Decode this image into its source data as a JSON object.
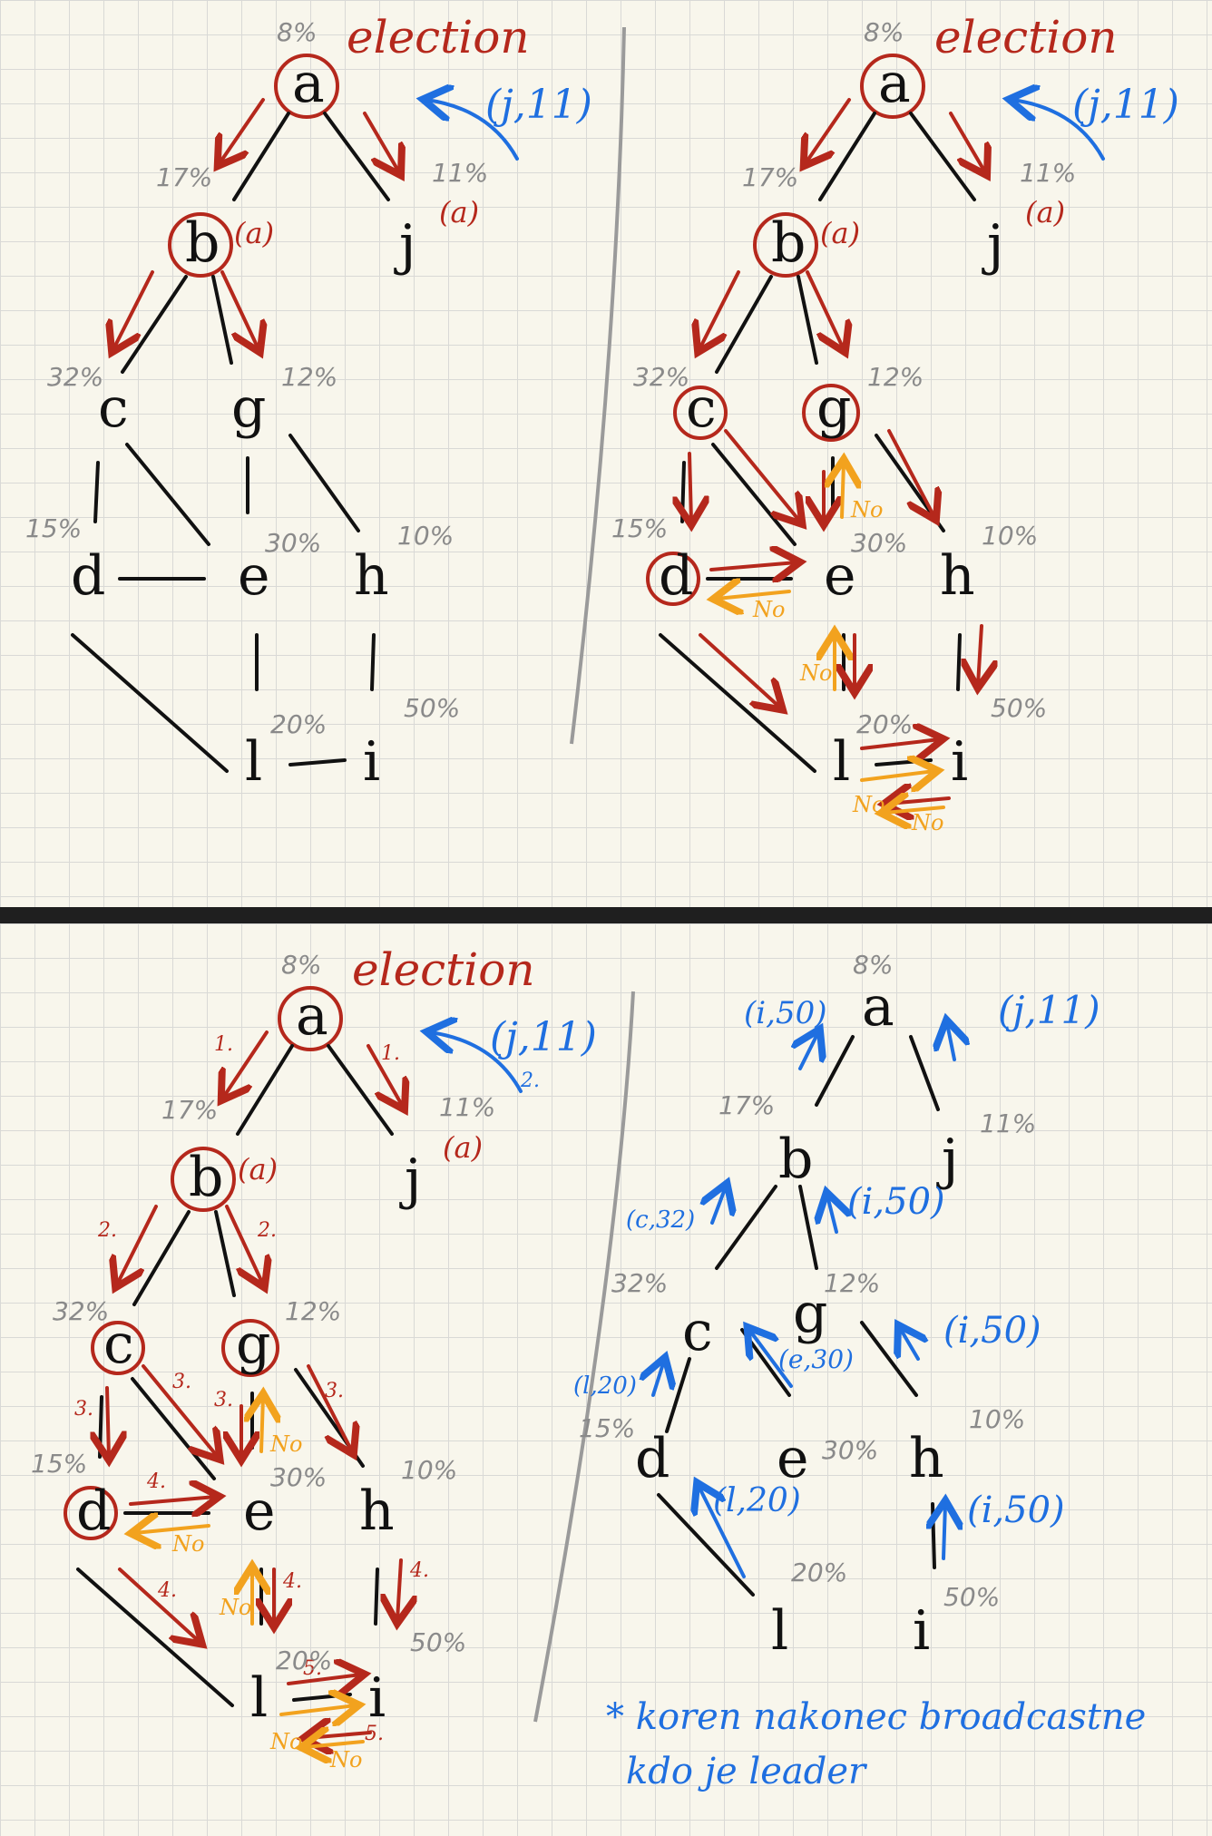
{
  "labels": {
    "election": "election",
    "msg_j": "(j,11)",
    "from_a": "(a)",
    "no": "No",
    "footnote_line1": "* koren nakonec broadcastne",
    "footnote_line2": "kdo je leader"
  },
  "nodes": {
    "a": "a",
    "b": "b",
    "c": "c",
    "d": "d",
    "e": "e",
    "g": "g",
    "h": "h",
    "i": "i",
    "j": "j",
    "l": "l"
  },
  "percents": {
    "a": "8%",
    "b": "17%",
    "j": "11%",
    "c": "32%",
    "g": "12%",
    "d": "15%",
    "e": "30%",
    "h": "10%",
    "l": "20%",
    "i": "50%"
  },
  "steps": {
    "s1": "1.",
    "s2": "2.",
    "s3": "3.",
    "s4": "4.",
    "s5": "5."
  },
  "replies": {
    "to_a_left": "(i,50)",
    "to_a_right": "(j,11)",
    "b_to_a": "(i,50)",
    "c_to_b": "(c,32)",
    "e_to_g": "(e,30)",
    "h_to_g": "(i,50)",
    "d_to_c": "(l,20)",
    "l_to_d": "(l,20)",
    "i_to_h": "(i,50)"
  },
  "colors": {
    "red": "#b5281c",
    "blue": "#1f6fe0",
    "orange": "#f2a21e",
    "paper": "#f8f6ec"
  }
}
